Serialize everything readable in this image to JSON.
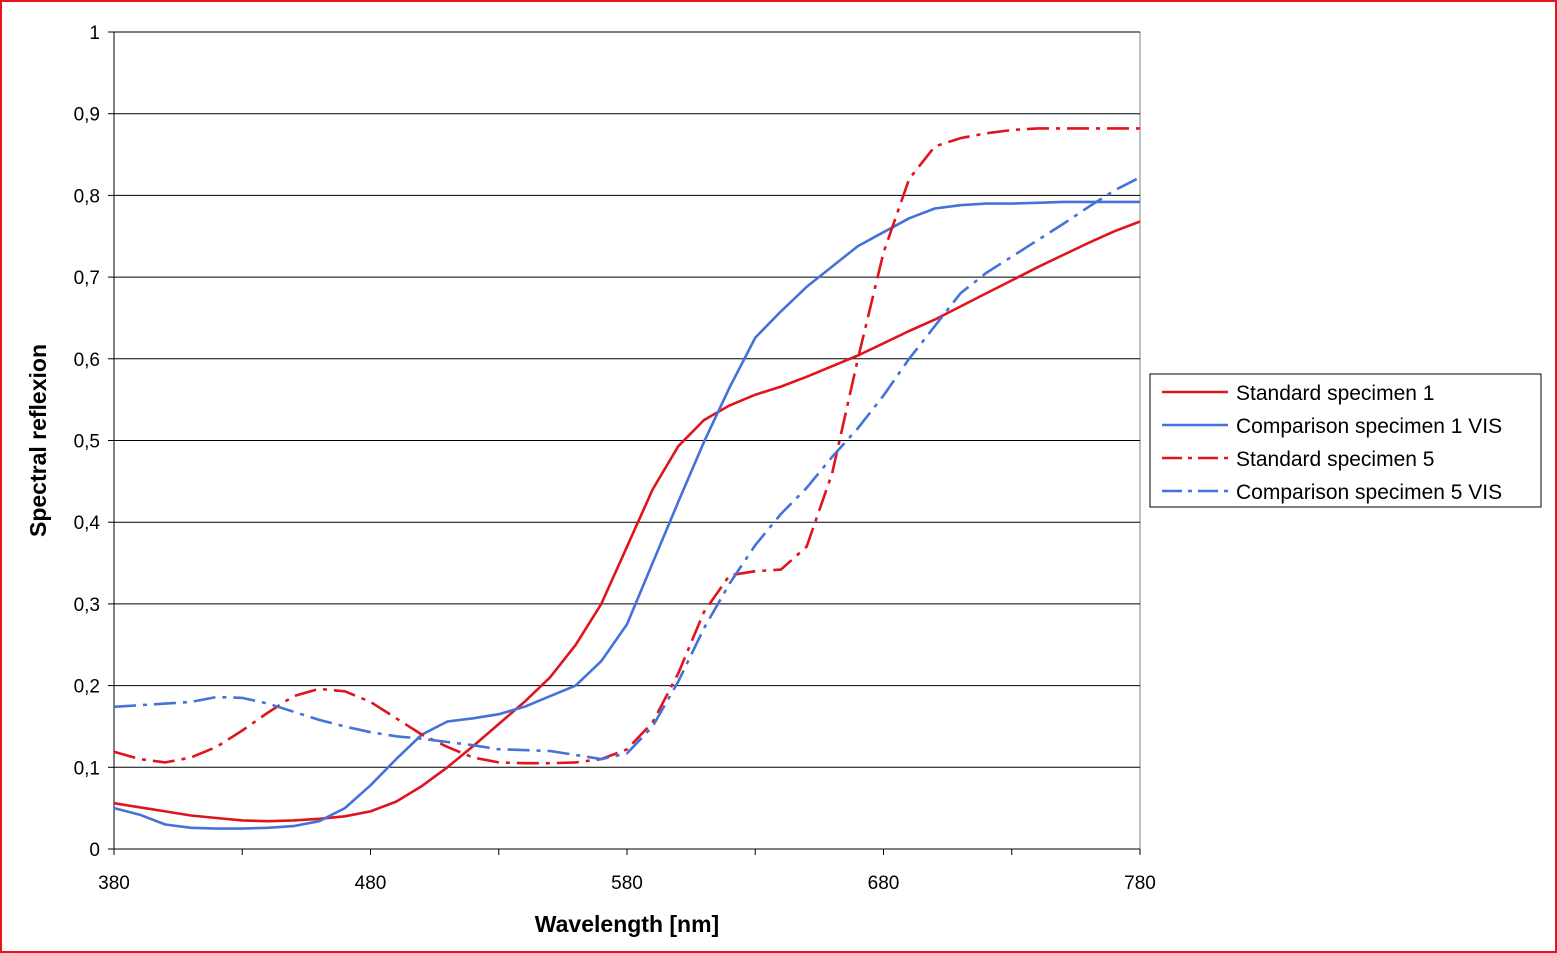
{
  "chart_data": {
    "type": "line",
    "title": "",
    "xlabel": "Wavelength [nm]",
    "ylabel": "Spectral reflexion",
    "xlim": [
      380,
      780
    ],
    "ylim": [
      0,
      1
    ],
    "x_tick_labels": [
      "380",
      "480",
      "580",
      "680",
      "780"
    ],
    "x_tick_values": [
      380,
      480,
      580,
      680,
      780
    ],
    "x_minor_ticks": [
      430,
      530,
      630,
      730
    ],
    "y_tick_labels": [
      "0",
      "0,1",
      "0,2",
      "0,3",
      "0,4",
      "0,5",
      "0,6",
      "0,7",
      "0,8",
      "0,9",
      "1"
    ],
    "y_tick_values": [
      0,
      0.1,
      0.2,
      0.3,
      0.4,
      0.5,
      0.6,
      0.7,
      0.8,
      0.9,
      1.0
    ],
    "grid": "horizontal major",
    "legend_position": "right",
    "series": [
      {
        "name": "Standard specimen 1",
        "color": "#e0141c",
        "dash": "solid",
        "x": [
          380,
          390,
          400,
          410,
          420,
          430,
          440,
          450,
          460,
          470,
          480,
          490,
          500,
          510,
          520,
          530,
          540,
          550,
          560,
          570,
          580,
          590,
          600,
          610,
          620,
          630,
          640,
          650,
          660,
          670,
          680,
          690,
          700,
          710,
          720,
          730,
          740,
          750,
          760,
          770,
          780
        ],
        "y": [
          0.056,
          0.051,
          0.046,
          0.041,
          0.038,
          0.035,
          0.034,
          0.035,
          0.037,
          0.04,
          0.046,
          0.058,
          0.077,
          0.1,
          0.126,
          0.153,
          0.18,
          0.21,
          0.25,
          0.3,
          0.37,
          0.44,
          0.493,
          0.525,
          0.543,
          0.556,
          0.566,
          0.578,
          0.591,
          0.604,
          0.619,
          0.634,
          0.648,
          0.664,
          0.68,
          0.696,
          0.712,
          0.727,
          0.742,
          0.756,
          0.768
        ]
      },
      {
        "name": "Comparison specimen 1 VIS",
        "color": "#4472d8",
        "dash": "solid",
        "x": [
          380,
          390,
          400,
          410,
          420,
          430,
          440,
          450,
          460,
          470,
          480,
          490,
          500,
          510,
          520,
          530,
          540,
          550,
          560,
          570,
          580,
          590,
          600,
          610,
          620,
          630,
          640,
          650,
          660,
          670,
          680,
          690,
          700,
          710,
          720,
          730,
          740,
          750,
          760,
          770,
          780
        ],
        "y": [
          0.05,
          0.042,
          0.03,
          0.026,
          0.025,
          0.025,
          0.026,
          0.028,
          0.034,
          0.05,
          0.078,
          0.11,
          0.14,
          0.156,
          0.16,
          0.165,
          0.174,
          0.187,
          0.2,
          0.23,
          0.275,
          0.35,
          0.425,
          0.498,
          0.565,
          0.626,
          0.658,
          0.688,
          0.713,
          0.738,
          0.755,
          0.772,
          0.784,
          0.788,
          0.79,
          0.79,
          0.791,
          0.792,
          0.792,
          0.792,
          0.792
        ]
      },
      {
        "name": "Standard specimen 5",
        "color": "#e0141c",
        "dash": "dashdot",
        "x": [
          380,
          390,
          400,
          410,
          420,
          430,
          440,
          450,
          460,
          470,
          480,
          490,
          500,
          510,
          520,
          530,
          540,
          550,
          560,
          570,
          580,
          590,
          600,
          610,
          620,
          630,
          640,
          650,
          660,
          670,
          680,
          690,
          700,
          710,
          720,
          730,
          740,
          750,
          760,
          770,
          780
        ],
        "y": [
          0.119,
          0.11,
          0.106,
          0.112,
          0.125,
          0.145,
          0.167,
          0.187,
          0.196,
          0.193,
          0.18,
          0.16,
          0.14,
          0.125,
          0.112,
          0.106,
          0.105,
          0.105,
          0.106,
          0.11,
          0.122,
          0.155,
          0.215,
          0.29,
          0.335,
          0.34,
          0.342,
          0.37,
          0.46,
          0.6,
          0.73,
          0.82,
          0.86,
          0.87,
          0.876,
          0.88,
          0.882,
          0.882,
          0.882,
          0.882,
          0.882
        ]
      },
      {
        "name": "Comparison specimen 5 VIS",
        "color": "#4472d8",
        "dash": "dashdot",
        "x": [
          380,
          390,
          400,
          410,
          420,
          430,
          440,
          450,
          460,
          470,
          480,
          490,
          500,
          510,
          520,
          530,
          540,
          550,
          560,
          570,
          580,
          590,
          600,
          610,
          620,
          630,
          640,
          650,
          660,
          670,
          680,
          690,
          700,
          710,
          720,
          730,
          740,
          750,
          760,
          770,
          780
        ],
        "y": [
          0.174,
          0.176,
          0.178,
          0.18,
          0.186,
          0.185,
          0.178,
          0.168,
          0.158,
          0.15,
          0.143,
          0.138,
          0.135,
          0.131,
          0.127,
          0.122,
          0.121,
          0.12,
          0.115,
          0.11,
          0.117,
          0.15,
          0.205,
          0.27,
          0.325,
          0.372,
          0.41,
          0.442,
          0.48,
          0.515,
          0.555,
          0.6,
          0.64,
          0.68,
          0.705,
          0.725,
          0.745,
          0.765,
          0.786,
          0.806,
          0.822
        ]
      }
    ]
  }
}
